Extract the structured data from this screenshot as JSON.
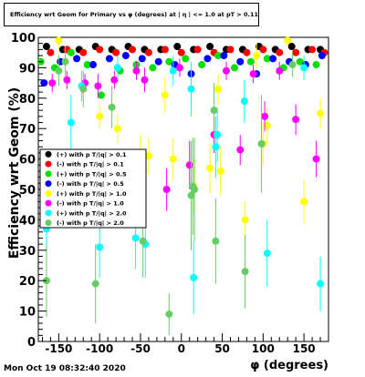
{
  "chart_data": {
    "type": "scatter",
    "title": "Efficiency wrt Geom for Primary vs φ (degrees) at | η | <= 1.0 at pT > 0.11",
    "xlabel": "φ (degrees)",
    "ylabel": "Efficiency wrt Geom (%)",
    "xlim": [
      -175,
      180
    ],
    "ylim": [
      0,
      100
    ],
    "xticks": [
      -150,
      -100,
      -50,
      0,
      50,
      100,
      150
    ],
    "yticks": [
      0,
      10,
      20,
      30,
      40,
      50,
      60,
      70,
      80,
      90,
      100
    ],
    "legend_position": "center-left",
    "series": [
      {
        "name": "(+) with p T/|q| > 0.1",
        "color": "#000000",
        "x": [
          -165,
          -145,
          -125,
          -105,
          -85,
          -65,
          -45,
          -25,
          -5,
          15,
          35,
          55,
          75,
          95,
          115,
          135,
          155,
          170
        ],
        "y": [
          97,
          96,
          96,
          97,
          96,
          97,
          96,
          96,
          97,
          96,
          97,
          96,
          96,
          97,
          96,
          97,
          96,
          96
        ],
        "err": []
      },
      {
        "name": "(-) with p T/|q| > 0.1",
        "color": "#ff0000",
        "x": [
          -160,
          -140,
          -120,
          -100,
          -80,
          -60,
          -40,
          -20,
          0,
          20,
          40,
          60,
          80,
          100,
          120,
          140,
          160,
          175
        ],
        "y": [
          95,
          96,
          95,
          96,
          95,
          96,
          95,
          96,
          95,
          96,
          95,
          96,
          95,
          96,
          95,
          95,
          96,
          95
        ],
        "err": []
      },
      {
        "name": "(+) with p T/|q| > 0.5",
        "color": "#00e000",
        "x": [
          -172,
          -155,
          -135,
          -115,
          -98,
          -75,
          -55,
          -35,
          -15,
          5,
          25,
          45,
          65,
          85,
          105,
          125,
          145,
          165
        ],
        "y": [
          92,
          90,
          95,
          91,
          81,
          89,
          91,
          90,
          92,
          93,
          91,
          94,
          90,
          92,
          93,
          90,
          92,
          91
        ],
        "err": []
      },
      {
        "name": "(-) with p T/|q| > 0.5",
        "color": "#0000ff",
        "x": [
          -168,
          -148,
          -128,
          -108,
          -88,
          -68,
          -48,
          -28,
          -8,
          12,
          32,
          52,
          72,
          92,
          112,
          132,
          152,
          172
        ],
        "y": [
          85,
          92,
          93,
          91,
          93,
          94,
          93,
          92,
          91,
          88,
          93,
          94,
          92,
          88,
          93,
          92,
          91,
          94
        ],
        "err": []
      },
      {
        "name": "(+) with p T/|q| > 1.0",
        "color": "#ffff00",
        "x": [
          -150,
          -100,
          -78,
          -50,
          -40,
          -20,
          -10,
          15,
          35,
          45,
          48,
          78,
          92,
          100,
          105,
          130,
          150,
          170
        ],
        "y": [
          99,
          74,
          70,
          62,
          61,
          81,
          60,
          51,
          57,
          83,
          56,
          40,
          94,
          65,
          71,
          99,
          46,
          75
        ],
        "err": [
          3,
          4,
          5,
          6,
          6,
          6,
          7,
          9,
          8,
          5,
          8,
          6,
          4,
          7,
          6,
          2,
          7,
          5
        ]
      },
      {
        "name": "(-) with p T/|q| > 1.0",
        "color": "#ff00ff",
        "x": [
          -158,
          -140,
          -118,
          -102,
          -82,
          -55,
          -45,
          -18,
          -2,
          10,
          40,
          55,
          72,
          88,
          102,
          120,
          140,
          165
        ],
        "y": [
          85,
          86,
          85,
          84,
          86,
          89,
          86,
          50,
          90,
          58,
          68,
          89,
          63,
          88,
          74,
          89,
          73,
          60
        ],
        "err": [
          3,
          3,
          3,
          4,
          3,
          3,
          4,
          7,
          3,
          8,
          6,
          3,
          5,
          3,
          5,
          3,
          5,
          6
        ]
      },
      {
        "name": "(+) with p T/|q| > 2.0",
        "color": "#00ffff",
        "x": [
          -165,
          -135,
          -122,
          -100,
          -78,
          -56,
          -44,
          -10,
          12,
          15,
          42,
          44,
          77,
          105,
          150,
          170
        ],
        "y": [
          37,
          72,
          84,
          31,
          90,
          34,
          32,
          89,
          83,
          21,
          64,
          68,
          79,
          29,
          90,
          19
        ],
        "err": [
          8,
          9,
          5,
          10,
          4,
          10,
          11,
          5,
          9,
          12,
          10,
          9,
          7,
          11,
          4,
          9
        ]
      },
      {
        "name": "(-) with p T/|q| > 2.0",
        "color": "#66cc66",
        "x": [
          -165,
          -150,
          -142,
          -120,
          -105,
          -85,
          -47,
          -15,
          12,
          14,
          16,
          40,
          42,
          78,
          98,
          136
        ],
        "y": [
          20,
          89,
          92,
          83,
          19,
          77,
          33,
          9,
          48,
          51,
          50,
          76,
          33,
          23,
          65,
          91
        ],
        "err": [
          12,
          5,
          5,
          6,
          13,
          7,
          12,
          7,
          18,
          16,
          17,
          9,
          14,
          12,
          16,
          4
        ]
      }
    ]
  },
  "footer": {
    "timestamp": "Mon Oct 19 08:32:40 2020"
  }
}
